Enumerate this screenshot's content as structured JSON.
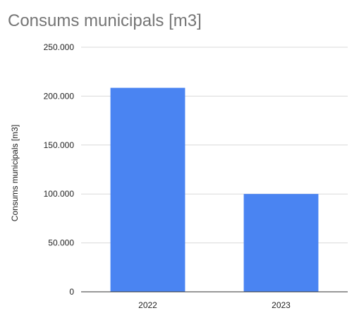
{
  "title": "Consums municipals [m3]",
  "chart_data": {
    "type": "bar",
    "title": "Consums municipals [m3]",
    "xlabel": "",
    "ylabel": "Consums municipals  [m3]",
    "categories": [
      "2022",
      "2023"
    ],
    "series": [
      {
        "values": [
          208500,
          100000
        ],
        "color": "#4a84f2"
      }
    ],
    "ylim": [
      0,
      250000
    ],
    "yticks": [
      0,
      50000,
      100000,
      150000,
      200000,
      250000
    ],
    "ytick_labels": [
      "0",
      "50.000",
      "100.000",
      "150.000",
      "200.000",
      "250.000"
    ],
    "grid": true,
    "legend": "none"
  }
}
